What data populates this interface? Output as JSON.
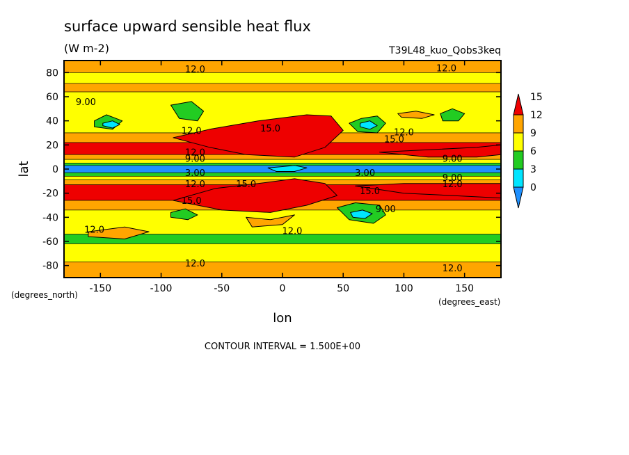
{
  "chart_data": {
    "type": "heatmap",
    "title": "surface upward sensible heat flux",
    "subtitle": "(W m-2)",
    "experiment": "T39L48_kuo_Qobs3keq",
    "xlabel": "lon",
    "ylabel": "lat",
    "x_units": "(degrees_east)",
    "y_units": "(degrees_north)",
    "xlim": [
      -180,
      180
    ],
    "ylim": [
      -90,
      90
    ],
    "x_ticks": [
      -150,
      -100,
      -50,
      0,
      50,
      100,
      150
    ],
    "x_tick_labels": [
      "-150",
      "-100",
      "-50",
      "0",
      "50",
      "100",
      "150"
    ],
    "y_ticks": [
      80,
      60,
      40,
      20,
      0,
      -20,
      -40,
      -60,
      -80
    ],
    "y_tick_labels": [
      "80",
      "60",
      "40",
      "20",
      "0",
      "-20",
      "-40",
      "-60",
      "-80"
    ],
    "colorbar": {
      "levels": [
        0,
        3,
        6,
        9,
        12,
        15
      ],
      "level_labels": [
        "0",
        "3",
        "6",
        "9",
        "12",
        "15"
      ],
      "colors": [
        "#1e90ff",
        "#00e5ff",
        "#22cc22",
        "#ffff00",
        "#ffa500",
        "#ee0000"
      ],
      "extend": "both"
    },
    "contour_interval_text": "CONTOUR INTERVAL = 1.500E+00",
    "zonal_bands": [
      {
        "lat_from": 90,
        "lat_to": 80,
        "class": 4
      },
      {
        "lat_from": 80,
        "lat_to": 71,
        "class": 3
      },
      {
        "lat_from": 71,
        "lat_to": 64,
        "class": 4
      },
      {
        "lat_from": 64,
        "lat_to": 30,
        "class": 3
      },
      {
        "lat_from": 30,
        "lat_to": 22,
        "class": 4
      },
      {
        "lat_from": 22,
        "lat_to": 12,
        "class": 5
      },
      {
        "lat_from": 12,
        "lat_to": 8,
        "class": 4
      },
      {
        "lat_from": 8,
        "lat_to": 5,
        "class": 3
      },
      {
        "lat_from": 5,
        "lat_to": 3,
        "class": 2
      },
      {
        "lat_from": 3,
        "lat_to": -3,
        "class": 0
      },
      {
        "lat_from": -3,
        "lat_to": -6,
        "class": 2
      },
      {
        "lat_from": -6,
        "lat_to": -9,
        "class": 3
      },
      {
        "lat_from": -9,
        "lat_to": -13,
        "class": 4
      },
      {
        "lat_from": -13,
        "lat_to": -26,
        "class": 5
      },
      {
        "lat_from": -26,
        "lat_to": -34,
        "class": 4
      },
      {
        "lat_from": -34,
        "lat_to": -54,
        "class": 3
      },
      {
        "lat_from": -54,
        "lat_to": -62,
        "class": 2
      },
      {
        "lat_from": -62,
        "lat_to": -77,
        "class": 3
      },
      {
        "lat_from": -77,
        "lat_to": -90,
        "class": 4
      }
    ],
    "regions": [
      {
        "class": 5,
        "lon": [
          -90,
          -60,
          -20,
          20,
          40,
          50,
          35,
          10,
          -30,
          -60,
          -90
        ],
        "lat": [
          26,
          33,
          40,
          45,
          44,
          32,
          18,
          10,
          12,
          18,
          26
        ]
      },
      {
        "class": 5,
        "lon": [
          -90,
          -50,
          -10,
          20,
          45,
          35,
          10,
          -20,
          -55,
          -90
        ],
        "lat": [
          -26,
          -34,
          -36,
          -30,
          -22,
          -12,
          -8,
          -12,
          -16,
          -26
        ]
      },
      {
        "class": 5,
        "lon": [
          80,
          120,
          160,
          180,
          180,
          160,
          120,
          80
        ],
        "lat": [
          14,
          16,
          18,
          20,
          12,
          10,
          10,
          14
        ]
      },
      {
        "class": 5,
        "lon": [
          60,
          100,
          140,
          180,
          180,
          140,
          100,
          60
        ],
        "lat": [
          -14,
          -20,
          -22,
          -24,
          -12,
          -12,
          -12,
          -14
        ]
      },
      {
        "class": 2,
        "lon": [
          -155,
          -145,
          -132,
          -140,
          -155
        ],
        "lat": [
          40,
          45,
          40,
          33,
          35
        ]
      },
      {
        "class": 2,
        "lon": [
          -92,
          -75,
          -65,
          -70,
          -85,
          -92
        ],
        "lat": [
          53,
          56,
          48,
          40,
          42,
          53
        ]
      },
      {
        "class": 2,
        "lon": [
          55,
          65,
          78,
          85,
          78,
          62,
          55
        ],
        "lat": [
          38,
          42,
          44,
          38,
          30,
          31,
          38
        ]
      },
      {
        "class": 2,
        "lon": [
          130,
          140,
          150,
          145,
          132,
          130
        ],
        "lat": [
          46,
          50,
          46,
          40,
          40,
          46
        ]
      },
      {
        "class": 2,
        "lon": [
          -92,
          -80,
          -70,
          -78,
          -92
        ],
        "lat": [
          -36,
          -33,
          -38,
          -42,
          -40
        ]
      },
      {
        "class": 2,
        "lon": [
          45,
          60,
          80,
          85,
          75,
          55,
          45
        ],
        "lat": [
          -32,
          -28,
          -30,
          -38,
          -45,
          -42,
          -32
        ]
      },
      {
        "class": 1,
        "lon": [
          -148,
          -140,
          -134,
          -140,
          -148
        ],
        "lat": [
          38,
          40,
          37,
          34,
          36
        ]
      },
      {
        "class": 1,
        "lon": [
          64,
          72,
          78,
          72,
          64
        ],
        "lat": [
          38,
          40,
          36,
          33,
          35
        ]
      },
      {
        "class": 1,
        "lon": [
          56,
          66,
          74,
          68,
          58,
          56
        ],
        "lat": [
          -36,
          -34,
          -37,
          -41,
          -40,
          -36
        ]
      },
      {
        "class": 1,
        "lon": [
          -12,
          0,
          10,
          20,
          10,
          -5,
          -12
        ],
        "lat": [
          1,
          2,
          3,
          1,
          -2,
          -2,
          1
        ]
      },
      {
        "class": 4,
        "lon": [
          95,
          110,
          125,
          115,
          98,
          95
        ],
        "lat": [
          46,
          48,
          45,
          42,
          43,
          46
        ]
      },
      {
        "class": 4,
        "lon": [
          -160,
          -130,
          -110,
          -130,
          -160
        ],
        "lat": [
          -52,
          -48,
          -52,
          -58,
          -56
        ]
      },
      {
        "class": 4,
        "lon": [
          -30,
          -10,
          10,
          0,
          -25,
          -30
        ],
        "lat": [
          -40,
          -42,
          -38,
          -46,
          -48,
          -40
        ]
      }
    ],
    "contour_labels": [
      {
        "text": "12.0",
        "lon": -72,
        "lat": 83
      },
      {
        "text": "12.0",
        "lon": 135,
        "lat": 84
      },
      {
        "text": "9.00",
        "lon": -162,
        "lat": 56
      },
      {
        "text": "15.0",
        "lon": -10,
        "lat": 34
      },
      {
        "text": "12.0",
        "lon": -75,
        "lat": 32
      },
      {
        "text": "12.0",
        "lon": 100,
        "lat": 31
      },
      {
        "text": "15.0",
        "lon": 92,
        "lat": 25
      },
      {
        "text": "12.0",
        "lon": -72,
        "lat": 14
      },
      {
        "text": "9.00",
        "lon": -72,
        "lat": 9
      },
      {
        "text": "9.00",
        "lon": 140,
        "lat": 9
      },
      {
        "text": "3.00",
        "lon": -72,
        "lat": -3
      },
      {
        "text": "3.00",
        "lon": 68,
        "lat": -3
      },
      {
        "text": "9.00",
        "lon": 140,
        "lat": -7
      },
      {
        "text": "12.0",
        "lon": -72,
        "lat": -12
      },
      {
        "text": "15.0",
        "lon": -30,
        "lat": -12
      },
      {
        "text": "12.0",
        "lon": 140,
        "lat": -12
      },
      {
        "text": "15.0",
        "lon": 72,
        "lat": -18
      },
      {
        "text": "15.0",
        "lon": -75,
        "lat": -26
      },
      {
        "text": "9.00",
        "lon": 85,
        "lat": -33
      },
      {
        "text": "12.0",
        "lon": -155,
        "lat": -50
      },
      {
        "text": "12.0",
        "lon": 8,
        "lat": -51
      },
      {
        "text": "12.0",
        "lon": -72,
        "lat": -78
      },
      {
        "text": "12.0",
        "lon": 140,
        "lat": -82
      }
    ]
  }
}
